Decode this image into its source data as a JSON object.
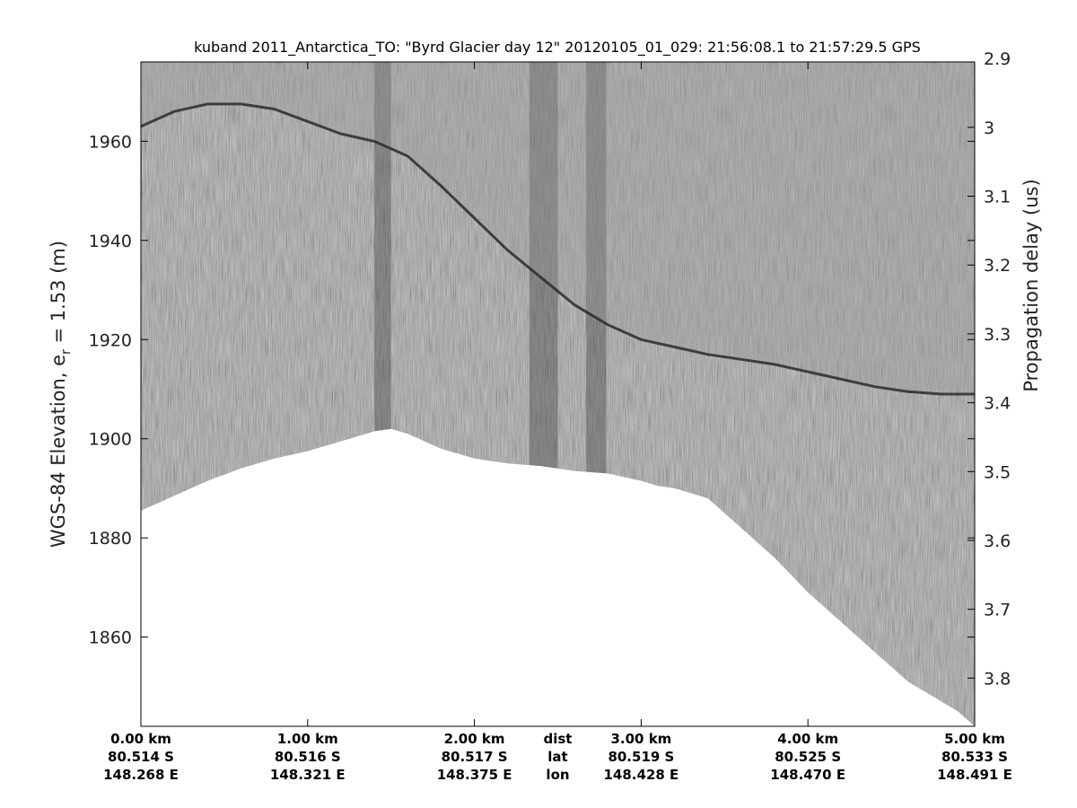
{
  "chart_data": {
    "type": "heatmap",
    "title": "kuband 2011_Antarctica_TO: \"Byrd Glacier day 12\"  20120105_01_029: 21:56:08.1 to 21:57:29.5 GPS",
    "ylabel_left": {
      "main": "WGS-84 Elevation, e",
      "subscript": "r",
      "suffix": " = 1.53 (m)"
    },
    "ylabel_right": "Propagation delay (us)",
    "ylim_left": [
      1842,
      1976
    ],
    "ylim_right": [
      3.87,
      2.905
    ],
    "yticks_left": [
      1860,
      1880,
      1900,
      1920,
      1940,
      1960
    ],
    "yticks_right": [
      2.9,
      3,
      3.1,
      3.2,
      3.3,
      3.4,
      3.5,
      3.6,
      3.7,
      3.8
    ],
    "xlim_km": [
      0,
      5
    ],
    "bottom_columns": [
      {
        "x_km": 0.0,
        "dist": "0.00 km",
        "lat": "80.514 S",
        "lon": "148.268 E"
      },
      {
        "x_km": 1.0,
        "dist": "1.00 km",
        "lat": "80.516 S",
        "lon": "148.321 E"
      },
      {
        "x_km": 2.0,
        "dist": "2.00 km",
        "lat": "80.517 S",
        "lon": "148.375 E"
      },
      {
        "x_km": 2.5,
        "dist": "dist",
        "lat": "lat",
        "lon": "lon"
      },
      {
        "x_km": 3.0,
        "dist": "3.00 km",
        "lat": "80.519 S",
        "lon": "148.428 E"
      },
      {
        "x_km": 4.0,
        "dist": "4.00 km",
        "lat": "80.525 S",
        "lon": "148.470 E"
      },
      {
        "x_km": 5.0,
        "dist": "5.00 km",
        "lat": "80.533 S",
        "lon": "148.491 E"
      }
    ],
    "surface_profile": {
      "x_km": [
        0,
        0.2,
        0.4,
        0.6,
        0.8,
        1.0,
        1.2,
        1.4,
        1.6,
        1.8,
        2.0,
        2.2,
        2.4,
        2.6,
        2.8,
        3.0,
        3.2,
        3.4,
        3.6,
        3.8,
        4.0,
        4.2,
        4.4,
        4.6,
        4.8,
        5.0
      ],
      "elevation_m": [
        1963,
        1966,
        1967.5,
        1967.5,
        1966.5,
        1964,
        1961.5,
        1960,
        1957,
        1951,
        1944.5,
        1938,
        1932.5,
        1927,
        1923,
        1920,
        1918.5,
        1917,
        1916,
        1915,
        1913.5,
        1912,
        1910.5,
        1909.5,
        1909,
        1909
      ]
    },
    "bottom_profile": {
      "x_km": [
        0,
        0.2,
        0.4,
        0.6,
        0.8,
        1.0,
        1.2,
        1.4,
        1.5,
        1.6,
        1.8,
        2.0,
        2.2,
        2.4,
        2.6,
        2.8,
        3.0,
        3.1,
        3.2,
        3.4,
        3.6,
        3.8,
        4.0,
        4.2,
        4.4,
        4.6,
        4.7,
        4.8,
        4.9,
        4.95,
        5.0
      ],
      "elevation_m": [
        1885.5,
        1888.5,
        1891.5,
        1894,
        1896,
        1897.5,
        1899.5,
        1901.5,
        1902,
        1901,
        1898,
        1896,
        1895,
        1894.5,
        1893.5,
        1893,
        1891.5,
        1890.5,
        1890,
        1888,
        1882,
        1876,
        1869,
        1863,
        1857,
        1851,
        1849,
        1847,
        1845,
        1843.5,
        1842
      ]
    },
    "dark_bands_km": [
      {
        "from": 1.4,
        "to": 1.5
      },
      {
        "from": 2.33,
        "to": 2.5
      },
      {
        "from": 2.67,
        "to": 2.79
      }
    ],
    "colormap": "grayscale",
    "colors": {
      "background_speckle": "#8a8a8a",
      "below_bed": "#ffffff",
      "surface_edge": "#2a2a2a",
      "axes": "#000000"
    },
    "grid": false,
    "legend": "none"
  }
}
